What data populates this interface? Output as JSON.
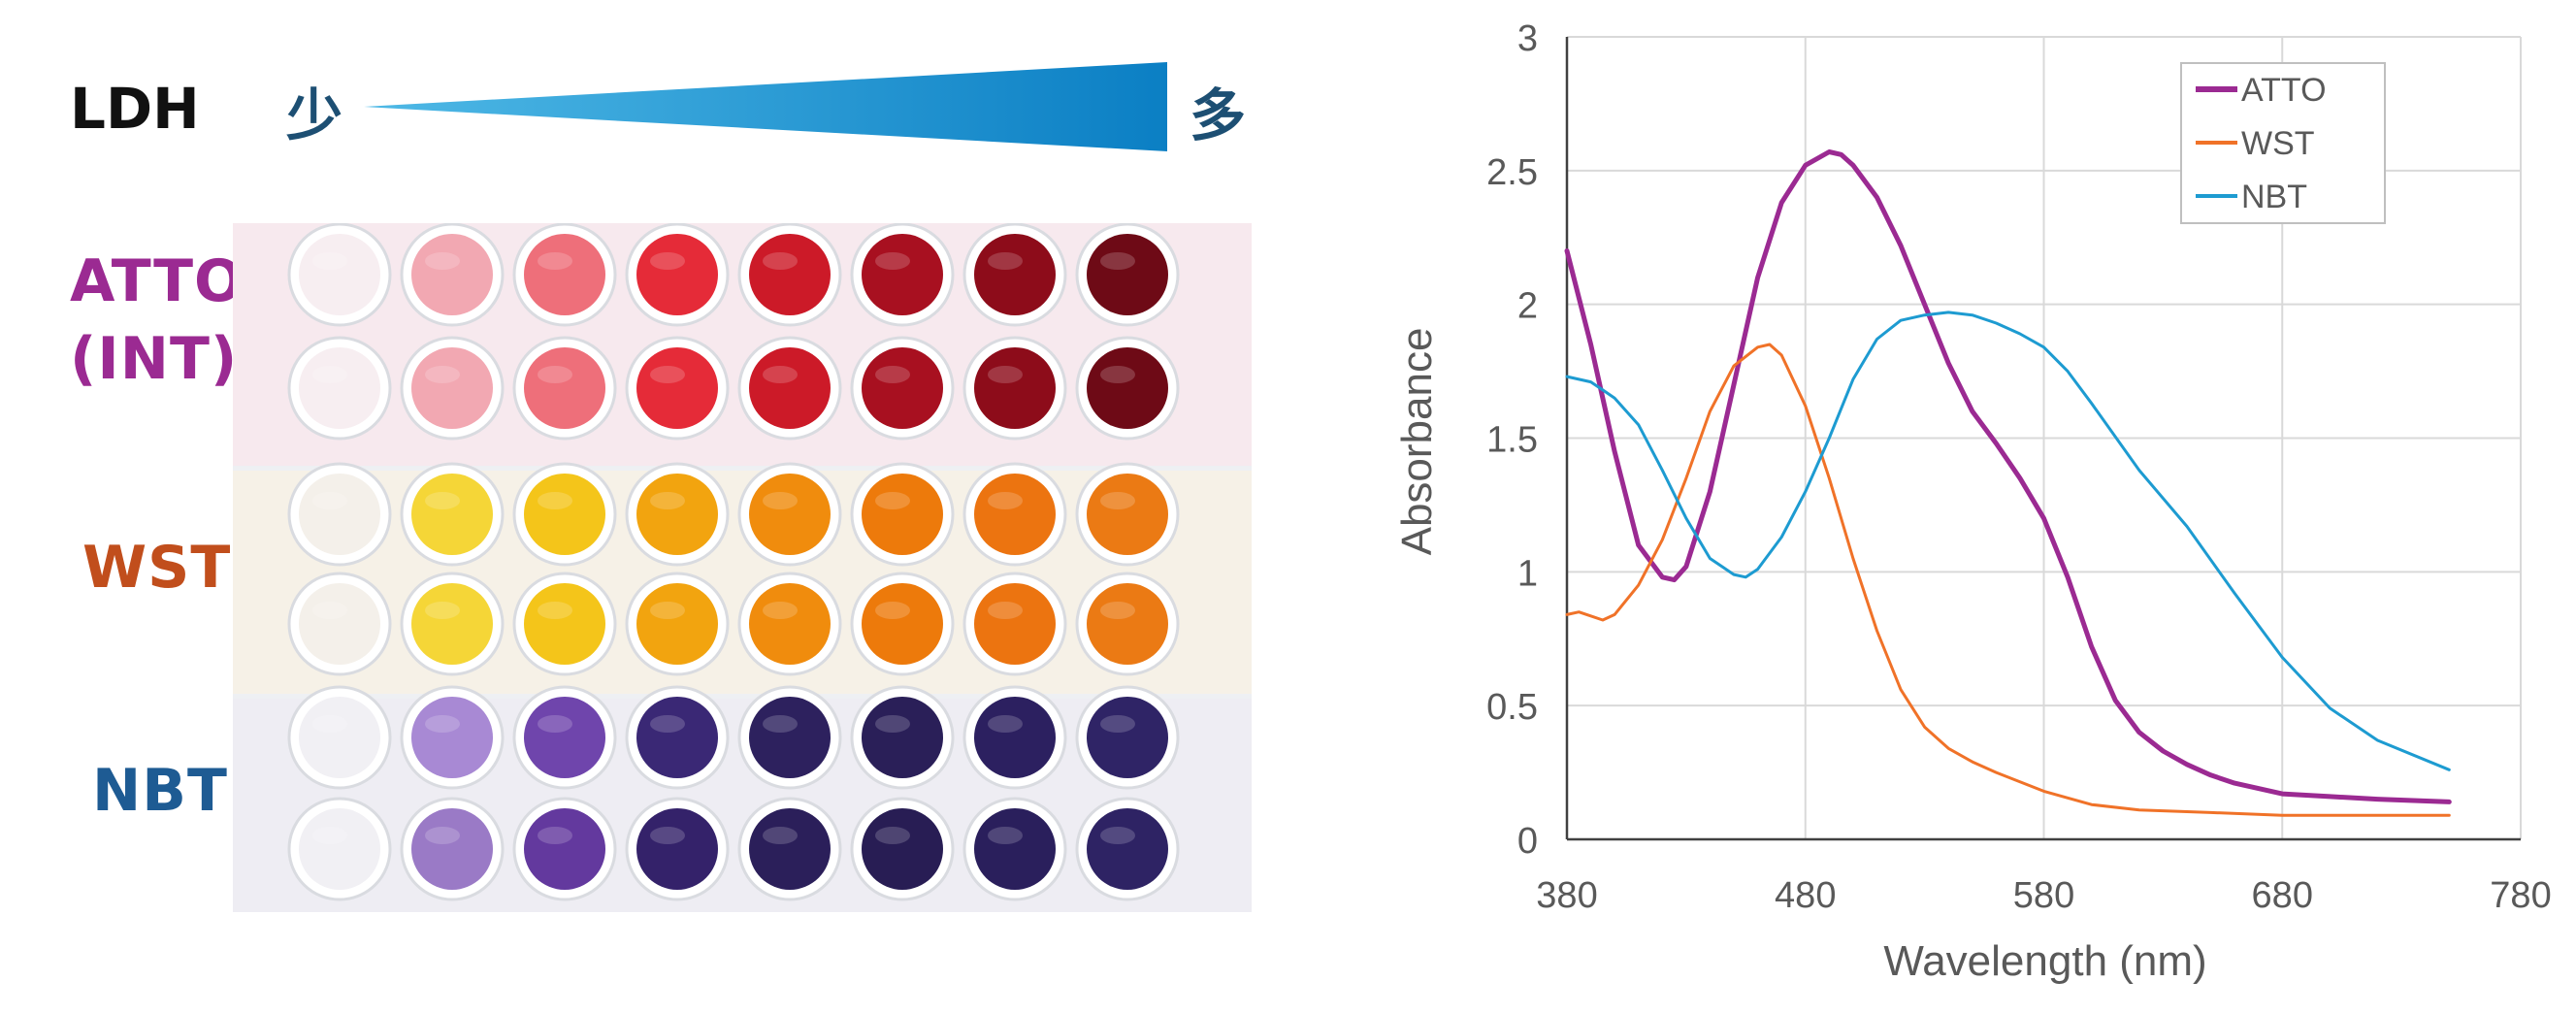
{
  "left_panel": {
    "ldh_label": "LDH",
    "few_label": "少",
    "many_label": "多",
    "row_labels": [
      {
        "key": "atto",
        "lines": [
          "ATTO",
          "(INT)"
        ],
        "color": "#9b2a92"
      },
      {
        "key": "wst",
        "lines": [
          "WST"
        ],
        "color": "#c14e1c"
      },
      {
        "key": "nbt",
        "lines": [
          "NBT"
        ],
        "color": "#1e5b93"
      }
    ],
    "wedge_color": "#1a8fd0",
    "plate_rows": [
      {
        "group": "atto",
        "colors": [
          "#f7eef1",
          "#f2a8b2",
          "#ee6f7a",
          "#e52b38",
          "#cc1a28",
          "#a81020",
          "#8d0c1a",
          "#6e0a16"
        ]
      },
      {
        "group": "atto",
        "colors": [
          "#f7eef1",
          "#f2a8b2",
          "#ee6f7a",
          "#e52b38",
          "#cc1a28",
          "#a81020",
          "#8d0c1a",
          "#6e0a16"
        ]
      },
      {
        "group": "wst",
        "colors": [
          "#f4f0ea",
          "#f5d637",
          "#f4c51a",
          "#f2a40f",
          "#f08c0d",
          "#ed7a0b",
          "#ec7410",
          "#eb7a14"
        ]
      },
      {
        "group": "wst",
        "colors": [
          "#f4f0ea",
          "#f5d637",
          "#f4c51a",
          "#f2a40f",
          "#f08c0d",
          "#ed7a0b",
          "#ec7410",
          "#eb7a14"
        ]
      },
      {
        "group": "nbt",
        "colors": [
          "#f1f0f4",
          "#a889d4",
          "#6f45ac",
          "#3a2875",
          "#2d215e",
          "#2a1f58",
          "#2c2060",
          "#2f2466"
        ]
      },
      {
        "group": "nbt",
        "colors": [
          "#f1f0f4",
          "#9a7ac6",
          "#63399e",
          "#34226a",
          "#2b1f5a",
          "#281d54",
          "#2a1f5c",
          "#2e2364"
        ]
      }
    ]
  },
  "chart_data": {
    "type": "line",
    "title": "",
    "xlabel": "Wavelength (nm)",
    "ylabel": "Absorbance",
    "xlim": [
      380,
      780
    ],
    "ylim": [
      0,
      3
    ],
    "xticks": [
      380,
      480,
      580,
      680,
      780
    ],
    "yticks": [
      0,
      0.5,
      1,
      1.5,
      2,
      2.5,
      3
    ],
    "ytick_labels": [
      "0",
      "0.5",
      "1",
      "1.5",
      "2",
      "2.5",
      "3"
    ],
    "grid": true,
    "legend_position": "top-right",
    "series": [
      {
        "name": "ATTO",
        "color": "#9b2a92",
        "width": 5,
        "x": [
          380,
          390,
          400,
          410,
          420,
          425,
          430,
          440,
          450,
          460,
          470,
          480,
          490,
          495,
          500,
          510,
          520,
          530,
          540,
          550,
          560,
          570,
          580,
          590,
          600,
          610,
          620,
          630,
          640,
          650,
          660,
          680,
          700,
          720,
          750
        ],
        "y": [
          2.2,
          1.85,
          1.45,
          1.1,
          0.98,
          0.97,
          1.02,
          1.3,
          1.7,
          2.1,
          2.38,
          2.52,
          2.57,
          2.56,
          2.52,
          2.4,
          2.22,
          2.0,
          1.78,
          1.6,
          1.48,
          1.35,
          1.2,
          0.98,
          0.72,
          0.52,
          0.4,
          0.33,
          0.28,
          0.24,
          0.21,
          0.17,
          0.16,
          0.15,
          0.14
        ]
      },
      {
        "name": "WST",
        "color": "#f07228",
        "width": 3,
        "x": [
          380,
          385,
          395,
          400,
          410,
          420,
          430,
          440,
          450,
          460,
          465,
          470,
          480,
          490,
          500,
          510,
          520,
          530,
          540,
          550,
          560,
          580,
          600,
          620,
          650,
          680,
          700,
          750
        ],
        "y": [
          0.84,
          0.85,
          0.82,
          0.84,
          0.95,
          1.12,
          1.35,
          1.6,
          1.77,
          1.84,
          1.85,
          1.81,
          1.62,
          1.35,
          1.05,
          0.78,
          0.56,
          0.42,
          0.34,
          0.29,
          0.25,
          0.18,
          0.13,
          0.11,
          0.1,
          0.09,
          0.09,
          0.09
        ]
      },
      {
        "name": "NBT",
        "color": "#1d9bd1",
        "width": 3,
        "x": [
          380,
          390,
          395,
          400,
          410,
          420,
          430,
          440,
          450,
          455,
          460,
          470,
          480,
          490,
          500,
          510,
          520,
          530,
          540,
          550,
          560,
          570,
          580,
          590,
          600,
          620,
          640,
          660,
          680,
          700,
          720,
          750
        ],
        "y": [
          1.73,
          1.71,
          1.68,
          1.65,
          1.55,
          1.38,
          1.2,
          1.05,
          0.99,
          0.98,
          1.01,
          1.13,
          1.3,
          1.5,
          1.72,
          1.87,
          1.94,
          1.96,
          1.97,
          1.96,
          1.93,
          1.89,
          1.84,
          1.75,
          1.63,
          1.38,
          1.17,
          0.92,
          0.68,
          0.49,
          0.37,
          0.26
        ]
      }
    ]
  }
}
